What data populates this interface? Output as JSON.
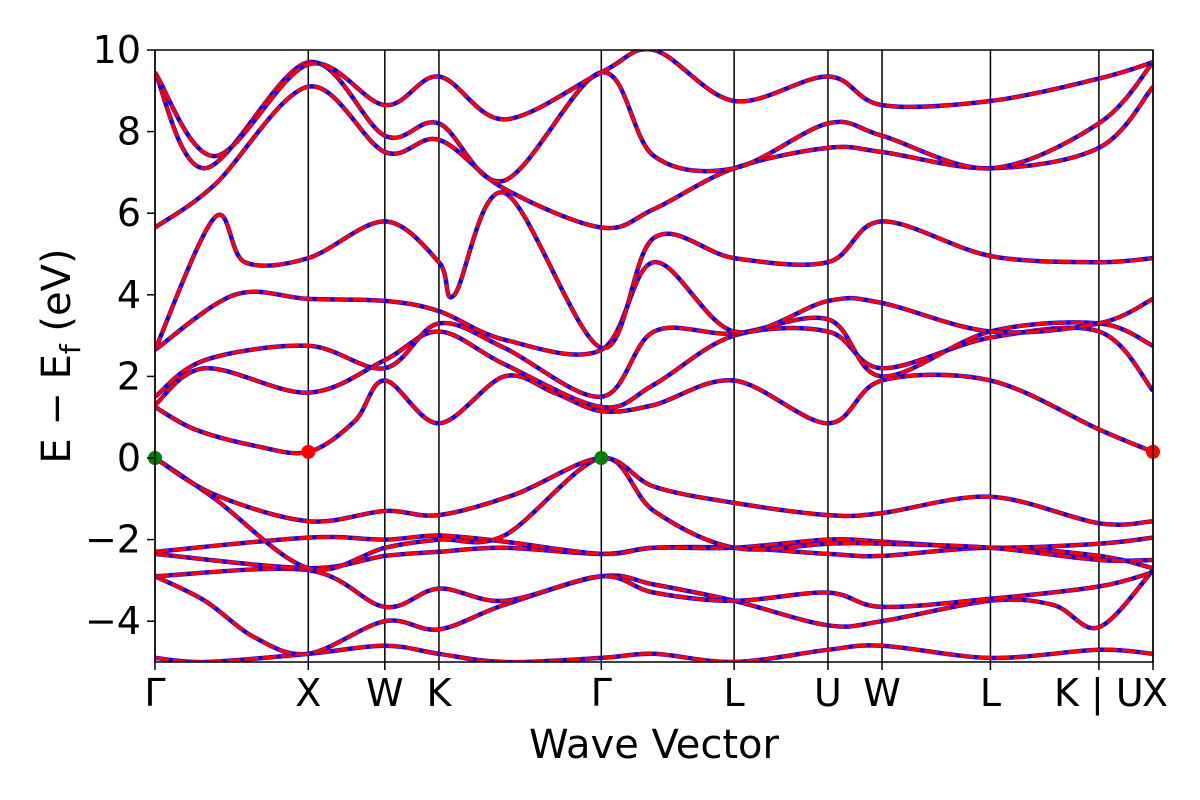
{
  "chart_data": {
    "type": "line",
    "xlabel": "Wave Vector",
    "ylabel_main": "E − E",
    "ylabel_sub": "f",
    "ylabel_unit": " (eV)",
    "ylim": [
      -5,
      10
    ],
    "xlim": [
      0,
      1
    ],
    "yticks": [
      "−4",
      "−2",
      "0",
      "2",
      "4",
      "6",
      "8",
      "10"
    ],
    "ytick_values": [
      -4,
      -2,
      0,
      2,
      4,
      6,
      8,
      10
    ],
    "kpoints": [
      {
        "label": "Γ",
        "x": 0.0
      },
      {
        "label": "X",
        "x": 0.1536
      },
      {
        "label": "W",
        "x": 0.2303
      },
      {
        "label": "K",
        "x": 0.2845
      },
      {
        "label": "Γ",
        "x": 0.4472
      },
      {
        "label": "L",
        "x": 0.5803
      },
      {
        "label": "U",
        "x": 0.6743
      },
      {
        "label": "W",
        "x": 0.7285
      },
      {
        "label": "L",
        "x": 0.8371
      },
      {
        "label": "K | U",
        "x": 0.9458
      },
      {
        "label": "X",
        "x": 1.0
      }
    ],
    "colors": {
      "band_solid": "#ff0000",
      "band_dash": "#0000ff",
      "vbm_marker": "#008000",
      "cbm_marker": "#ff0000"
    },
    "markers": [
      {
        "type": "vbm",
        "x": 0.0,
        "y": 0.0
      },
      {
        "type": "vbm",
        "x": 0.4472,
        "y": 0.0
      },
      {
        "type": "cbm",
        "x": 0.1536,
        "y": 0.15
      },
      {
        "type": "cbm",
        "x": 1.0,
        "y": 0.15
      }
    ],
    "series": [
      {
        "x": [
          0,
          0.05,
          0.1536,
          0.2303,
          0.2845,
          0.35,
          0.4472,
          0.5,
          0.5803,
          0.6743,
          0.7285,
          0.8371,
          0.9458,
          1.0
        ],
        "y": [
          -4.9,
          -5.0,
          -4.8,
          -4.6,
          -4.8,
          -5.0,
          -4.9,
          -4.8,
          -5.0,
          -4.7,
          -4.6,
          -4.9,
          -4.7,
          -4.8
        ]
      },
      {
        "x": [
          0,
          0.05,
          0.1,
          0.1536,
          0.2303,
          0.2845,
          0.35,
          0.4472,
          0.5,
          0.5803,
          0.6743,
          0.7285,
          0.8371,
          0.9,
          0.9458,
          1.0
        ],
        "y": [
          -2.9,
          -3.5,
          -4.4,
          -4.8,
          -4.0,
          -4.2,
          -3.6,
          -2.9,
          -3.1,
          -3.5,
          -4.1,
          -4.0,
          -3.5,
          -3.6,
          -4.15,
          -2.75
        ]
      },
      {
        "x": [
          0,
          0.1536,
          0.2303,
          0.2845,
          0.35,
          0.4472,
          0.5,
          0.5803,
          0.6743,
          0.7285,
          0.8371,
          0.9458,
          1.0
        ],
        "y": [
          -2.9,
          -2.75,
          -3.65,
          -3.2,
          -3.5,
          -2.9,
          -3.3,
          -3.5,
          -3.3,
          -3.65,
          -3.45,
          -3.15,
          -2.8
        ]
      },
      {
        "x": [
          0,
          0.1536,
          0.2303,
          0.2845,
          0.35,
          0.4472,
          0.5,
          0.5803,
          0.6743,
          0.7285,
          0.8371,
          0.9458,
          1.0
        ],
        "y": [
          -2.35,
          -2.7,
          -2.4,
          -2.3,
          -2.2,
          -2.35,
          -2.2,
          -2.2,
          -2.35,
          -2.4,
          -2.2,
          -2.4,
          -2.7
        ]
      },
      {
        "x": [
          0,
          0.1536,
          0.2303,
          0.2845,
          0.35,
          0.4472,
          0.5,
          0.5803,
          0.6743,
          0.7285,
          0.8371,
          0.9458,
          1.0
        ],
        "y": [
          -2.3,
          -1.95,
          -2.0,
          -1.9,
          -2.05,
          -2.35,
          -2.2,
          -2.2,
          -2.0,
          -2.05,
          -2.2,
          -2.1,
          -1.95
        ]
      },
      {
        "x": [
          0,
          0.06,
          0.1536,
          0.2303,
          0.2845,
          0.35,
          0.4472,
          0.5,
          0.5803,
          0.6743,
          0.7285,
          0.8371,
          0.9458,
          1.0
        ],
        "y": [
          0.0,
          -1.0,
          -2.7,
          -2.2,
          -2.0,
          -1.9,
          0.0,
          -1.3,
          -2.2,
          -2.1,
          -2.1,
          -2.2,
          -2.5,
          -2.5
        ]
      },
      {
        "x": [
          0,
          0.06,
          0.1536,
          0.2303,
          0.2845,
          0.36,
          0.4472,
          0.5,
          0.5803,
          0.6743,
          0.7285,
          0.8371,
          0.9458,
          1.0
        ],
        "y": [
          0.0,
          -0.9,
          -1.55,
          -1.3,
          -1.4,
          -0.9,
          0.0,
          -0.7,
          -1.1,
          -1.4,
          -1.35,
          -0.95,
          -1.6,
          -1.55
        ]
      },
      {
        "x": [
          0,
          0.04,
          0.1,
          0.1536,
          0.2,
          0.2303,
          0.2845,
          0.35,
          0.4,
          0.4472,
          0.5,
          0.5803,
          0.6743,
          0.7285,
          0.8371,
          0.9458,
          1.0
        ],
        "y": [
          1.25,
          0.7,
          0.3,
          0.15,
          0.9,
          1.9,
          0.85,
          2.0,
          1.6,
          1.15,
          1.3,
          1.9,
          0.85,
          1.9,
          1.9,
          0.7,
          0.15
        ]
      },
      {
        "x": [
          0,
          0.05,
          0.1536,
          0.2303,
          0.2845,
          0.35,
          0.4472,
          0.5,
          0.5803,
          0.6743,
          0.7285,
          0.8371,
          0.9458,
          1.0
        ],
        "y": [
          1.3,
          2.2,
          1.6,
          2.4,
          3.1,
          2.3,
          1.25,
          1.8,
          3.0,
          3.1,
          2.2,
          2.95,
          3.1,
          1.65
        ]
      },
      {
        "x": [
          0,
          0.05,
          0.1536,
          0.2303,
          0.2845,
          0.35,
          0.4472,
          0.5,
          0.5803,
          0.6743,
          0.7285,
          0.8371,
          0.9458,
          1.0
        ],
        "y": [
          1.5,
          2.4,
          2.75,
          2.2,
          3.3,
          2.7,
          1.5,
          3.1,
          3.05,
          3.4,
          2.0,
          3.1,
          3.3,
          2.75
        ]
      },
      {
        "x": [
          0,
          0.08,
          0.1536,
          0.2303,
          0.2845,
          0.35,
          0.4472,
          0.5,
          0.5803,
          0.6743,
          0.7285,
          0.8371,
          0.9458,
          1.0
        ],
        "y": [
          2.65,
          4.0,
          3.9,
          3.85,
          3.6,
          2.9,
          2.65,
          4.8,
          3.1,
          3.85,
          3.8,
          3.1,
          3.3,
          3.9
        ]
      },
      {
        "x": [
          0,
          0.06,
          0.09,
          0.1536,
          0.2303,
          0.2845,
          0.3,
          0.35,
          0.4472,
          0.5,
          0.5803,
          0.6743,
          0.7285,
          0.8371,
          0.9458,
          1.0
        ],
        "y": [
          2.65,
          5.9,
          4.8,
          4.9,
          5.8,
          4.8,
          4.0,
          6.5,
          2.7,
          5.4,
          4.9,
          4.8,
          5.8,
          4.95,
          4.8,
          4.9
        ]
      },
      {
        "x": [
          0,
          0.06,
          0.1536,
          0.2303,
          0.2845,
          0.35,
          0.4472,
          0.5,
          0.5803,
          0.6743,
          0.7285,
          0.8371,
          0.9458,
          1.0
        ],
        "y": [
          5.65,
          6.7,
          9.1,
          7.5,
          7.8,
          6.6,
          5.65,
          6.1,
          7.1,
          7.6,
          7.5,
          7.1,
          7.6,
          9.1
        ]
      },
      {
        "x": [
          0,
          0.05,
          0.1536,
          0.2303,
          0.2845,
          0.35,
          0.4472,
          0.5,
          0.5803,
          0.6743,
          0.7285,
          0.8371,
          0.9458,
          1.0
        ],
        "y": [
          9.45,
          7.1,
          9.7,
          7.9,
          8.2,
          6.8,
          9.45,
          7.4,
          7.1,
          8.2,
          7.9,
          7.1,
          8.2,
          9.7
        ]
      },
      {
        "x": [
          0,
          0.06,
          0.1536,
          0.2303,
          0.2845,
          0.35,
          0.4472,
          0.5,
          0.5803,
          0.6743,
          0.7285,
          0.8371,
          0.9458,
          1.0
        ],
        "y": [
          9.45,
          7.4,
          9.65,
          8.65,
          9.35,
          8.3,
          9.45,
          10.0,
          8.75,
          9.35,
          8.65,
          8.75,
          9.3,
          9.7
        ]
      }
    ]
  }
}
